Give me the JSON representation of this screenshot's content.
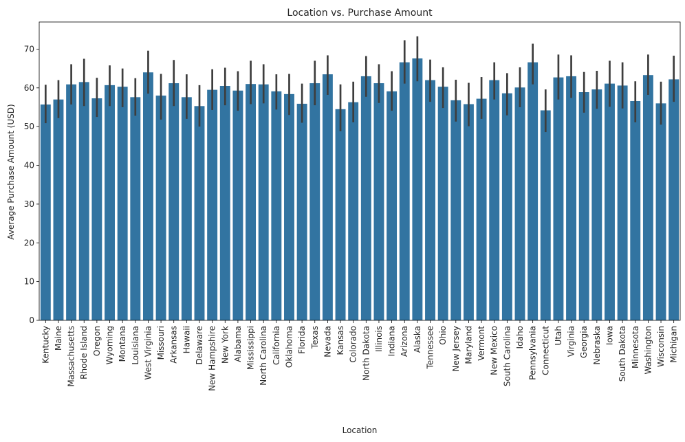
{
  "chart_data": {
    "type": "bar",
    "title": "Location vs. Purchase Amount",
    "xlabel": "Location",
    "ylabel": "Average Purchase Amount (USD)",
    "ylim": [
      0,
      77
    ],
    "yticks": [
      0,
      10,
      20,
      30,
      40,
      50,
      60,
      70
    ],
    "grid": false,
    "bar_color": "#3274a1",
    "errorbar_color": "#3d3d3d",
    "categories": [
      "Kentucky",
      "Maine",
      "Massachusetts",
      "Rhode Island",
      "Oregon",
      "Wyoming",
      "Montana",
      "Louisiana",
      "West Virginia",
      "Missouri",
      "Arkansas",
      "Hawaii",
      "Delaware",
      "New Hampshire",
      "New York",
      "Alabama",
      "Mississippi",
      "North Carolina",
      "California",
      "Oklahoma",
      "Florida",
      "Texas",
      "Nevada",
      "Kansas",
      "Colorado",
      "North Dakota",
      "Illinois",
      "Indiana",
      "Arizona",
      "Alaska",
      "Tennessee",
      "Ohio",
      "New Jersey",
      "Maryland",
      "Vermont",
      "New Mexico",
      "South Carolina",
      "Idaho",
      "Pennsylvania",
      "Connecticut",
      "Utah",
      "Virginia",
      "Georgia",
      "Nebraska",
      "Iowa",
      "South Dakota",
      "Minnesota",
      "Washington",
      "Wisconsin",
      "Michigan"
    ],
    "values": [
      55.7,
      57.0,
      60.9,
      61.5,
      57.3,
      60.7,
      60.3,
      57.6,
      64.0,
      58.0,
      61.2,
      57.6,
      55.3,
      59.5,
      60.5,
      59.3,
      61.0,
      60.9,
      59.1,
      58.4,
      55.9,
      61.2,
      63.5,
      54.5,
      56.3,
      63.0,
      61.2,
      59.1,
      66.6,
      67.6,
      62.0,
      60.3,
      56.8,
      55.8,
      57.2,
      62.0,
      58.6,
      60.1,
      66.6,
      54.2,
      62.7,
      63.0,
      58.9,
      59.6,
      61.1,
      60.6,
      56.6,
      63.3,
      56.0,
      62.2
    ],
    "ci_low": [
      50.9,
      52.2,
      55.7,
      55.3,
      52.5,
      55.3,
      55.0,
      52.8,
      58.5,
      51.8,
      55.3,
      52.0,
      50.0,
      54.3,
      55.5,
      54.1,
      55.8,
      56.0,
      54.4,
      53.0,
      51.0,
      55.5,
      58.2,
      48.8,
      51.1,
      57.7,
      56.1,
      54.1,
      61.1,
      61.7,
      56.4,
      54.8,
      51.3,
      50.1,
      52.0,
      57.0,
      52.9,
      55.0,
      60.9,
      48.6,
      57.0,
      57.4,
      53.6,
      54.6,
      55.1,
      54.7,
      51.1,
      58.2,
      50.5,
      56.4
    ],
    "ci_high": [
      60.8,
      62.0,
      66.1,
      67.5,
      62.6,
      65.8,
      65.0,
      62.5,
      69.6,
      63.6,
      67.2,
      63.5,
      60.7,
      64.8,
      65.2,
      64.3,
      67.0,
      66.1,
      63.5,
      63.6,
      61.1,
      67.0,
      68.4,
      60.9,
      61.6,
      68.2,
      66.1,
      64.3,
      72.3,
      73.3,
      67.3,
      65.3,
      62.1,
      61.3,
      62.8,
      66.6,
      63.8,
      65.3,
      71.4,
      59.6,
      68.6,
      68.4,
      64.1,
      64.4,
      67.0,
      66.6,
      61.7,
      68.6,
      61.6,
      68.3
    ]
  }
}
